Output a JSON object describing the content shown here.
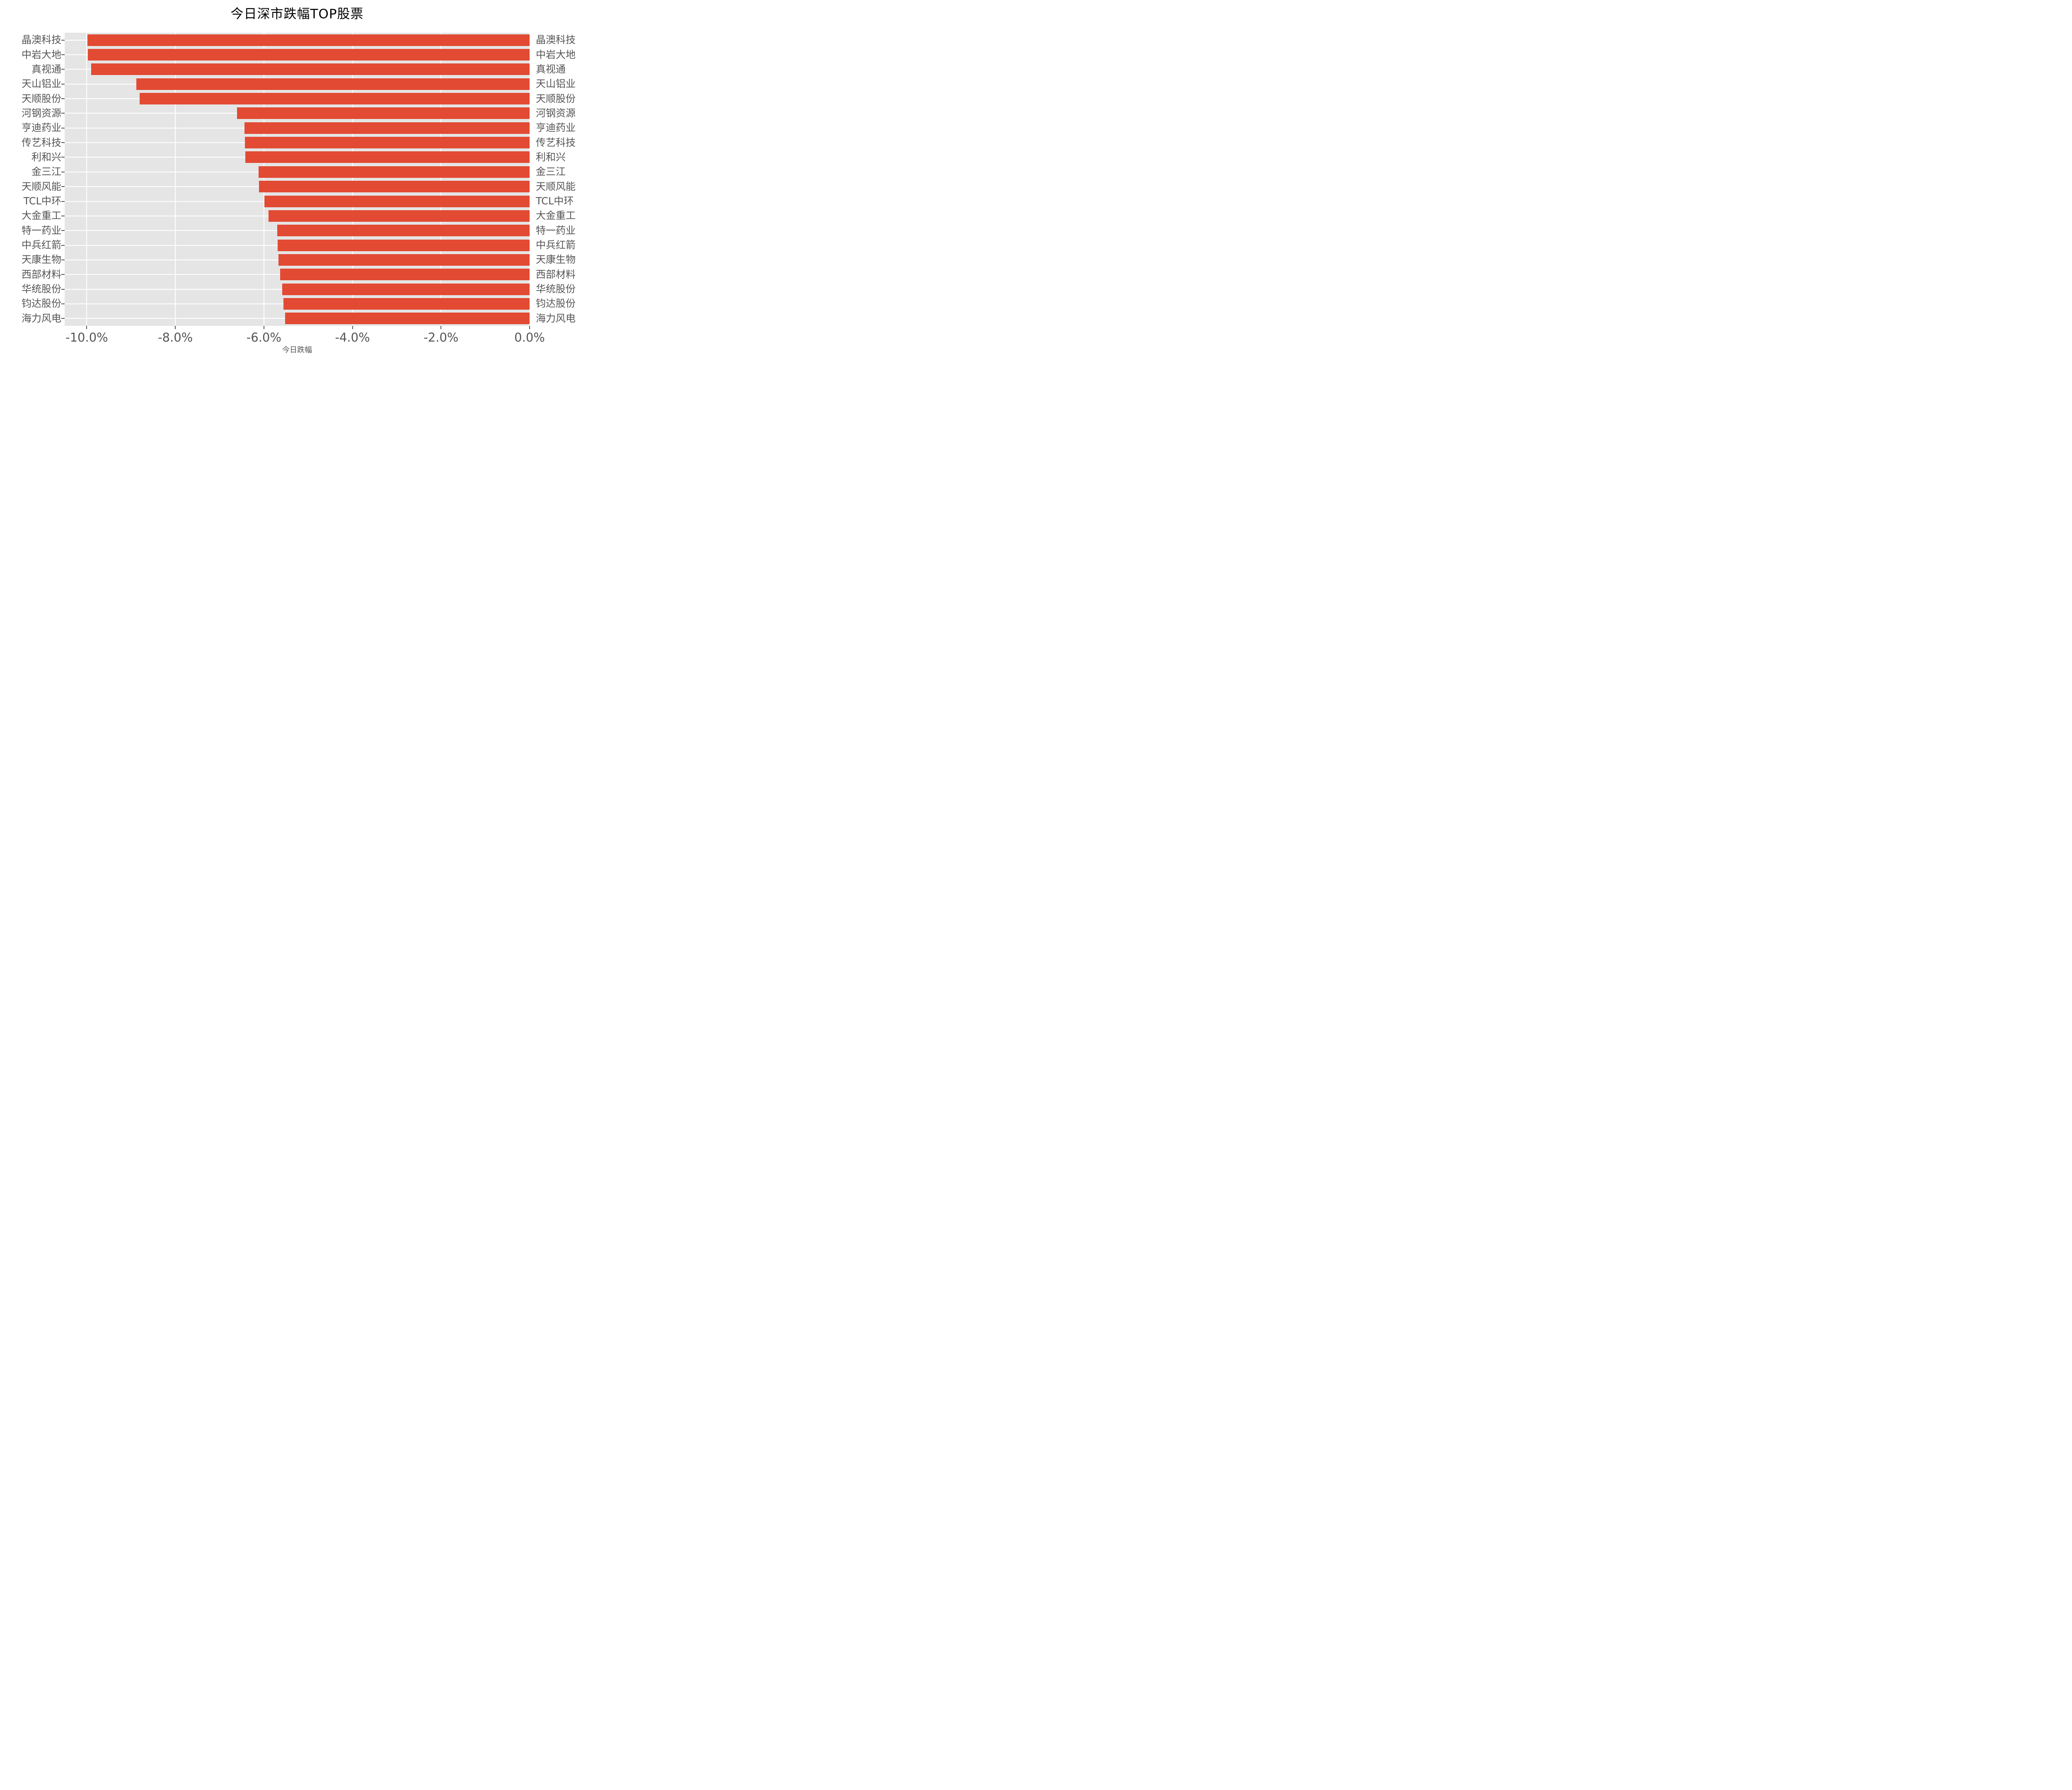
{
  "chart_data": {
    "type": "bar",
    "orientation": "horizontal",
    "title": "今日深市跌幅TOP股票",
    "xlabel": "今日跌幅",
    "ylabel": "",
    "categories": [
      "晶澳科技",
      "中岩大地",
      "真视通",
      "天山铝业",
      "天顺股份",
      "河钢资源",
      "亨迪药业",
      "传艺科技",
      "利和兴",
      "金三江",
      "天顺风能",
      "TCL中环",
      "大金重工",
      "特一药业",
      "中兵红箭",
      "天康生物",
      "西部材料",
      "华统股份",
      "钧达股份",
      "海力风电"
    ],
    "values": [
      -9.99,
      -9.98,
      -9.9,
      -8.88,
      -8.81,
      -6.61,
      -6.44,
      -6.43,
      -6.42,
      -6.12,
      -6.11,
      -5.99,
      -5.9,
      -5.7,
      -5.69,
      -5.67,
      -5.63,
      -5.59,
      -5.56,
      -5.52
    ],
    "value_unit": "%",
    "xlim": [
      -10.5,
      0
    ],
    "x_ticks": [
      {
        "label": "-10.0%",
        "value": -10
      },
      {
        "label": "-8.0%",
        "value": -8
      },
      {
        "label": "-6.0%",
        "value": -6
      },
      {
        "label": "-4.0%",
        "value": -4
      },
      {
        "label": "-2.0%",
        "value": -2
      },
      {
        "label": "0.0%",
        "value": 0
      }
    ],
    "grid": true,
    "legend": "none",
    "y_labels_both_sides": true,
    "bar_color": "#E24A33",
    "panel_bg": "#E5E5E5",
    "grid_color": "#FFFFFF",
    "tick_text_color": "#555555",
    "title_color": "#000000"
  }
}
